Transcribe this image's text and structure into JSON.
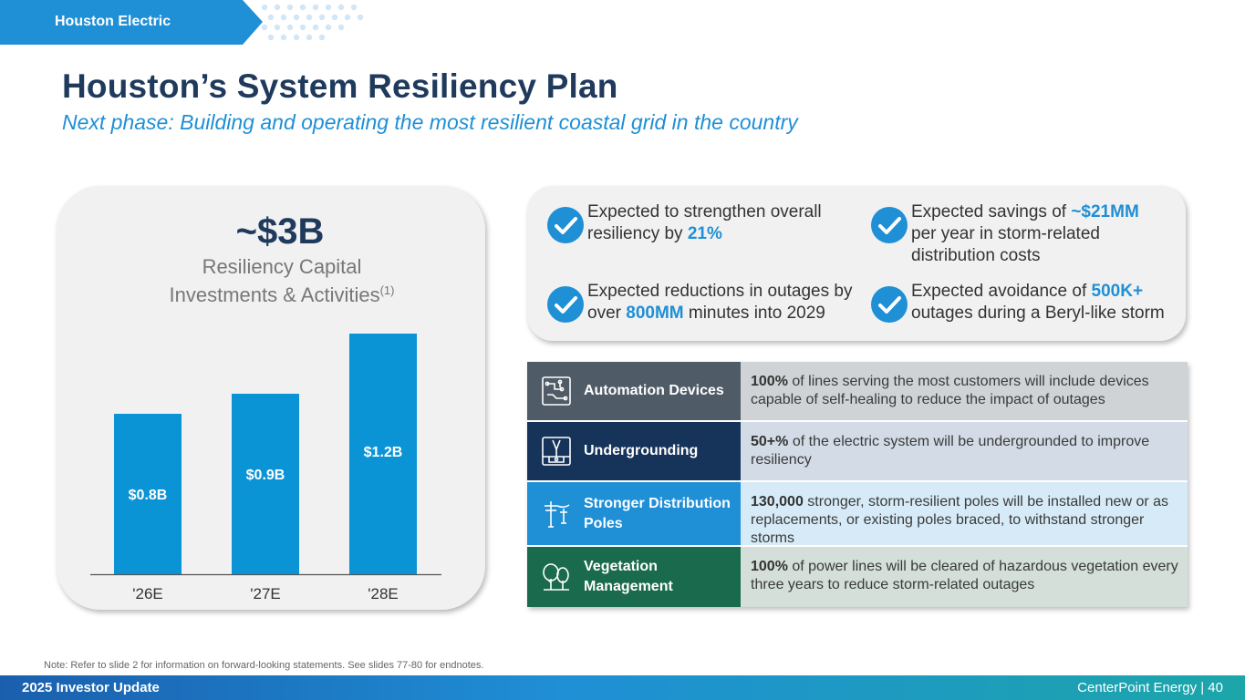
{
  "section_tag": "Houston Electric",
  "colors": {
    "navy": "#1f3a5c",
    "blue": "#1f8fd6",
    "bar": "#0a94d6"
  },
  "title": "Houston’s System Resiliency Plan",
  "subtitle": "Next phase: Building and operating the most resilient coastal grid in the country",
  "card": {
    "headline": "~$3B",
    "subheadline_line1": "Resiliency Capital",
    "subheadline_line2": "Investments & Activities",
    "subheadline_sup": "(1)"
  },
  "chart_data": {
    "type": "bar",
    "title": "Resiliency Capital Investments & Activities",
    "categories": [
      "'26E",
      "'27E",
      "'28E"
    ],
    "values": [
      0.8,
      0.9,
      1.2
    ],
    "labels": [
      "$0.8B",
      "$0.9B",
      "$1.2B"
    ],
    "ylim": [
      0,
      1.3
    ],
    "xlabel": "",
    "ylabel": "",
    "grid": false,
    "unit": "$B"
  },
  "benefits": [
    {
      "icon": "check-icon",
      "pre": "Expected to strengthen overall resiliency by ",
      "highlight": "21%",
      "post": ""
    },
    {
      "icon": "check-icon",
      "pre": "Expected savings of ",
      "highlight": "~$21MM",
      "post": " per year in storm-related distribution costs"
    },
    {
      "icon": "check-icon",
      "pre": "Expected reductions in outages by over ",
      "highlight": "800MM",
      "post": " minutes into 2029"
    },
    {
      "icon": "check-icon",
      "pre": "Expected avoidance of ",
      "highlight": "500K+",
      "post": " outages during a Beryl-like storm"
    }
  ],
  "initiatives": [
    {
      "icon": "circuit-board-icon",
      "category": "Automation Devices",
      "bold": "100%",
      "text": " of lines serving the most customers will include devices capable of self-healing to reduce the impact of outages",
      "cat_color": "#4f5b66",
      "desc_color": "#d0d3d6"
    },
    {
      "icon": "underground-cable-icon",
      "category": "Undergrounding",
      "bold": "50+%",
      "text": " of the electric system will be undergrounded to improve resiliency",
      "cat_color": "#16345a",
      "desc_color": "#d3dbe6"
    },
    {
      "icon": "utility-pole-icon",
      "category": "Stronger Distribution Poles",
      "bold": "130,000",
      "text": " stronger, storm-resilient poles will be installed new or as replacements, or existing poles braced, to withstand stronger storms",
      "cat_color": "#1f8fd6",
      "desc_color": "#d6ebf7"
    },
    {
      "icon": "trees-icon",
      "category": "Vegetation Management",
      "bold": "100%",
      "text": " of power lines will be cleared of hazardous vegetation every three years to reduce storm-related outages",
      "cat_color": "#1a6b4e",
      "desc_color": "#d3dfd8"
    }
  ],
  "note": "Note: Refer to slide 2 for information on forward-looking statements. See slides 77-80 for endnotes.",
  "footer": {
    "left": "2025 Investor Update",
    "right": "CenterPoint Energy | 40"
  }
}
